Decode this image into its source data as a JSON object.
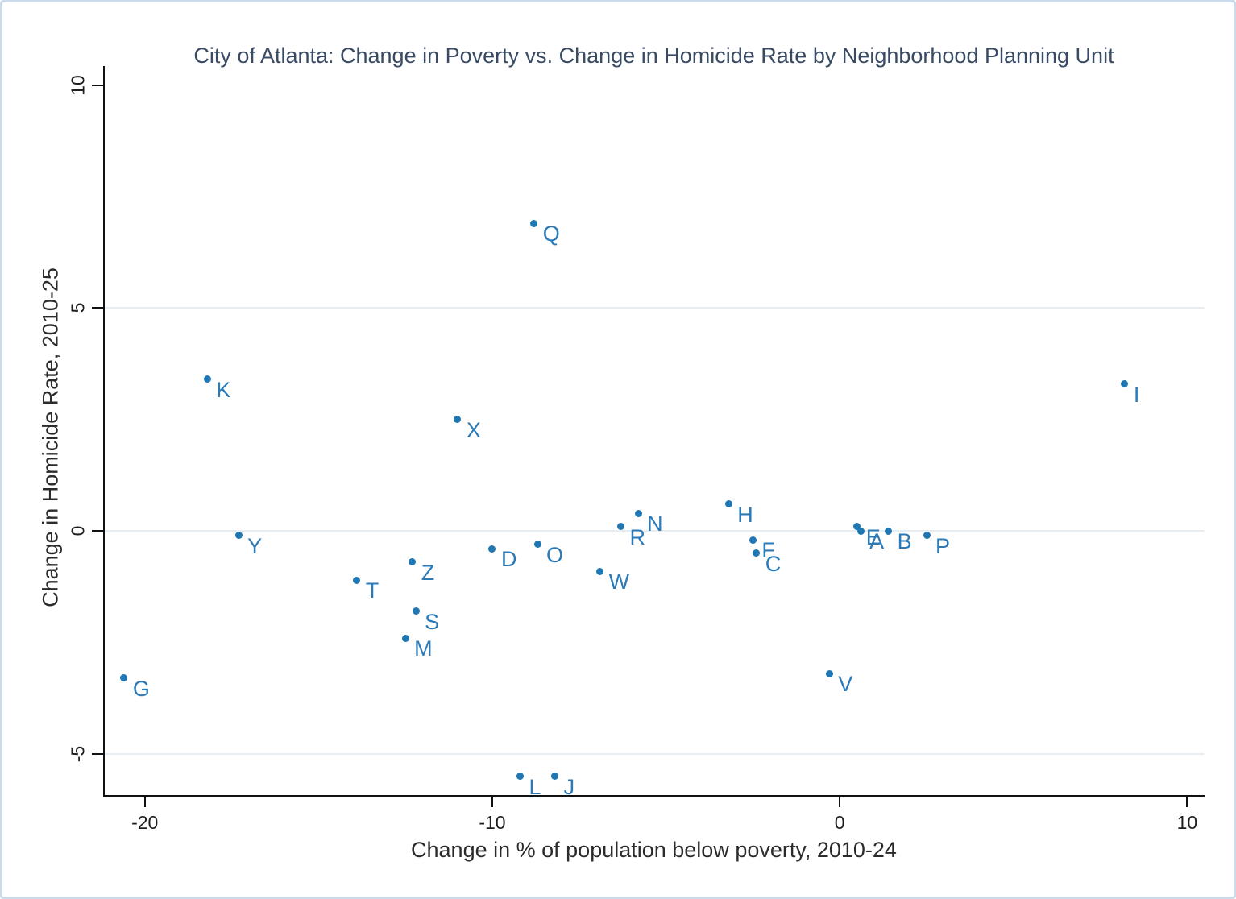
{
  "chart_data": {
    "type": "scatter",
    "title": "City of Atlanta: Change in Poverty vs. Change in Homicide Rate by Neighborhood Planning Unit",
    "xlabel": "Change in % of population below poverty, 2010-24",
    "ylabel": "Change in Homicide Rate, 2010-25",
    "xlim": [
      -21.2,
      10.5
    ],
    "ylim": [
      -5.92,
      10.1
    ],
    "x_ticks": [
      -20,
      -10,
      0,
      10
    ],
    "y_ticks": [
      -5,
      0,
      5,
      10
    ],
    "gridlines_y": [
      5,
      0,
      -5
    ],
    "legend": "none",
    "points": [
      {
        "label": "A",
        "x": 0.6,
        "y": 0.0
      },
      {
        "label": "B",
        "x": 1.4,
        "y": 0.0
      },
      {
        "label": "C",
        "x": -2.4,
        "y": -0.5
      },
      {
        "label": "D",
        "x": -10.0,
        "y": -0.4
      },
      {
        "label": "E",
        "x": 0.5,
        "y": 0.1
      },
      {
        "label": "F",
        "x": -2.5,
        "y": -0.2
      },
      {
        "label": "G",
        "x": -20.6,
        "y": -3.3
      },
      {
        "label": "H",
        "x": -3.2,
        "y": 0.6
      },
      {
        "label": "I",
        "x": 8.2,
        "y": 3.3
      },
      {
        "label": "J",
        "x": -8.2,
        "y": -5.5
      },
      {
        "label": "K",
        "x": -18.2,
        "y": 3.4
      },
      {
        "label": "L",
        "x": -9.2,
        "y": -5.5
      },
      {
        "label": "M",
        "x": -12.5,
        "y": -2.4
      },
      {
        "label": "N",
        "x": -5.8,
        "y": 0.4
      },
      {
        "label": "O",
        "x": -8.7,
        "y": -0.3
      },
      {
        "label": "P",
        "x": 2.5,
        "y": -0.1
      },
      {
        "label": "Q",
        "x": -8.8,
        "y": 6.9
      },
      {
        "label": "R",
        "x": -6.3,
        "y": 0.1
      },
      {
        "label": "S",
        "x": -12.2,
        "y": -1.8
      },
      {
        "label": "T",
        "x": -13.9,
        "y": -1.1
      },
      {
        "label": "V",
        "x": -0.3,
        "y": -3.2
      },
      {
        "label": "W",
        "x": -6.9,
        "y": -0.9
      },
      {
        "label": "X",
        "x": -11.0,
        "y": 2.5
      },
      {
        "label": "Y",
        "x": -17.3,
        "y": -0.1
      },
      {
        "label": "Z",
        "x": -12.3,
        "y": -0.7
      }
    ],
    "colors": {
      "point": "#1f77b4",
      "marker_label": "#2b7ab8",
      "title_text": "#384a64",
      "tick_text": "#1f1f1f",
      "axis": "#111111",
      "grid": "#e7eef3",
      "border": "#ccd9e9"
    }
  }
}
